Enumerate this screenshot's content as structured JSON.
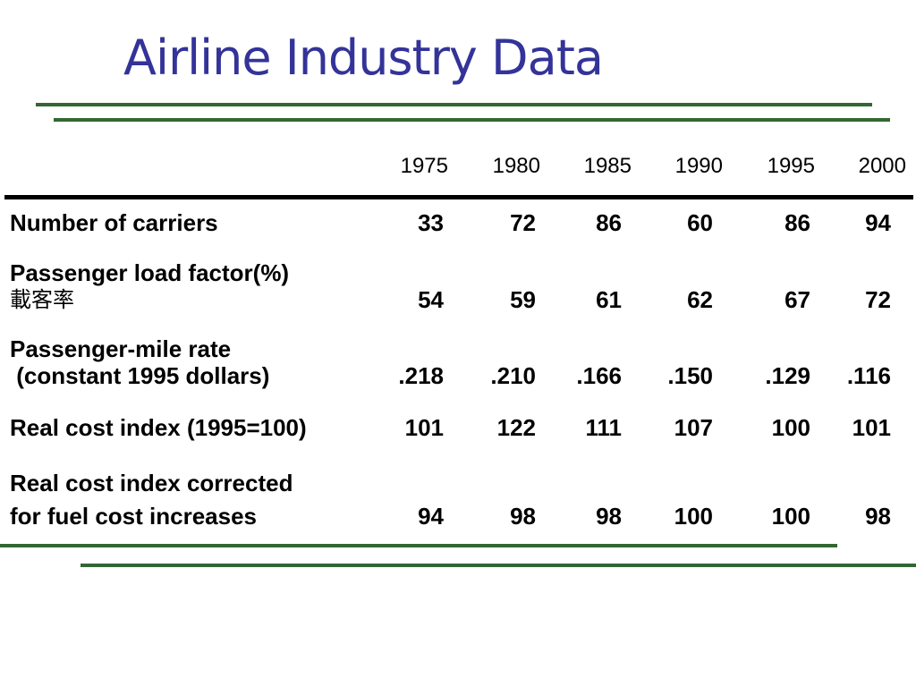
{
  "title": "Airline Industry Data",
  "years": [
    "1975",
    "1980",
    "1985",
    "1990",
    "1995",
    "2000"
  ],
  "rows": [
    {
      "label_lines": [
        "Number of carriers"
      ],
      "values": [
        "33",
        "72",
        "86",
        "60",
        "86",
        "94"
      ]
    },
    {
      "label_lines": [
        "Passenger load factor(%)",
        "載客率"
      ],
      "values": [
        "54",
        "59",
        "61",
        "62",
        "67",
        "72"
      ]
    },
    {
      "label_lines": [
        "Passenger-mile rate",
        " (constant 1995 dollars)"
      ],
      "values": [
        ".218",
        ".210",
        ".166",
        ".150",
        ".129",
        ".116"
      ]
    },
    {
      "label_lines": [
        "Real cost index (1995=100)"
      ],
      "values": [
        "101",
        "122",
        "111",
        "107",
        "100",
        "101"
      ]
    },
    {
      "label_lines": [
        "Real cost index corrected",
        "for fuel cost increases"
      ],
      "values": [
        "94",
        "98",
        "98",
        "100",
        "100",
        "98"
      ]
    }
  ],
  "colors": {
    "title": "#333399",
    "rules": "#336633"
  }
}
